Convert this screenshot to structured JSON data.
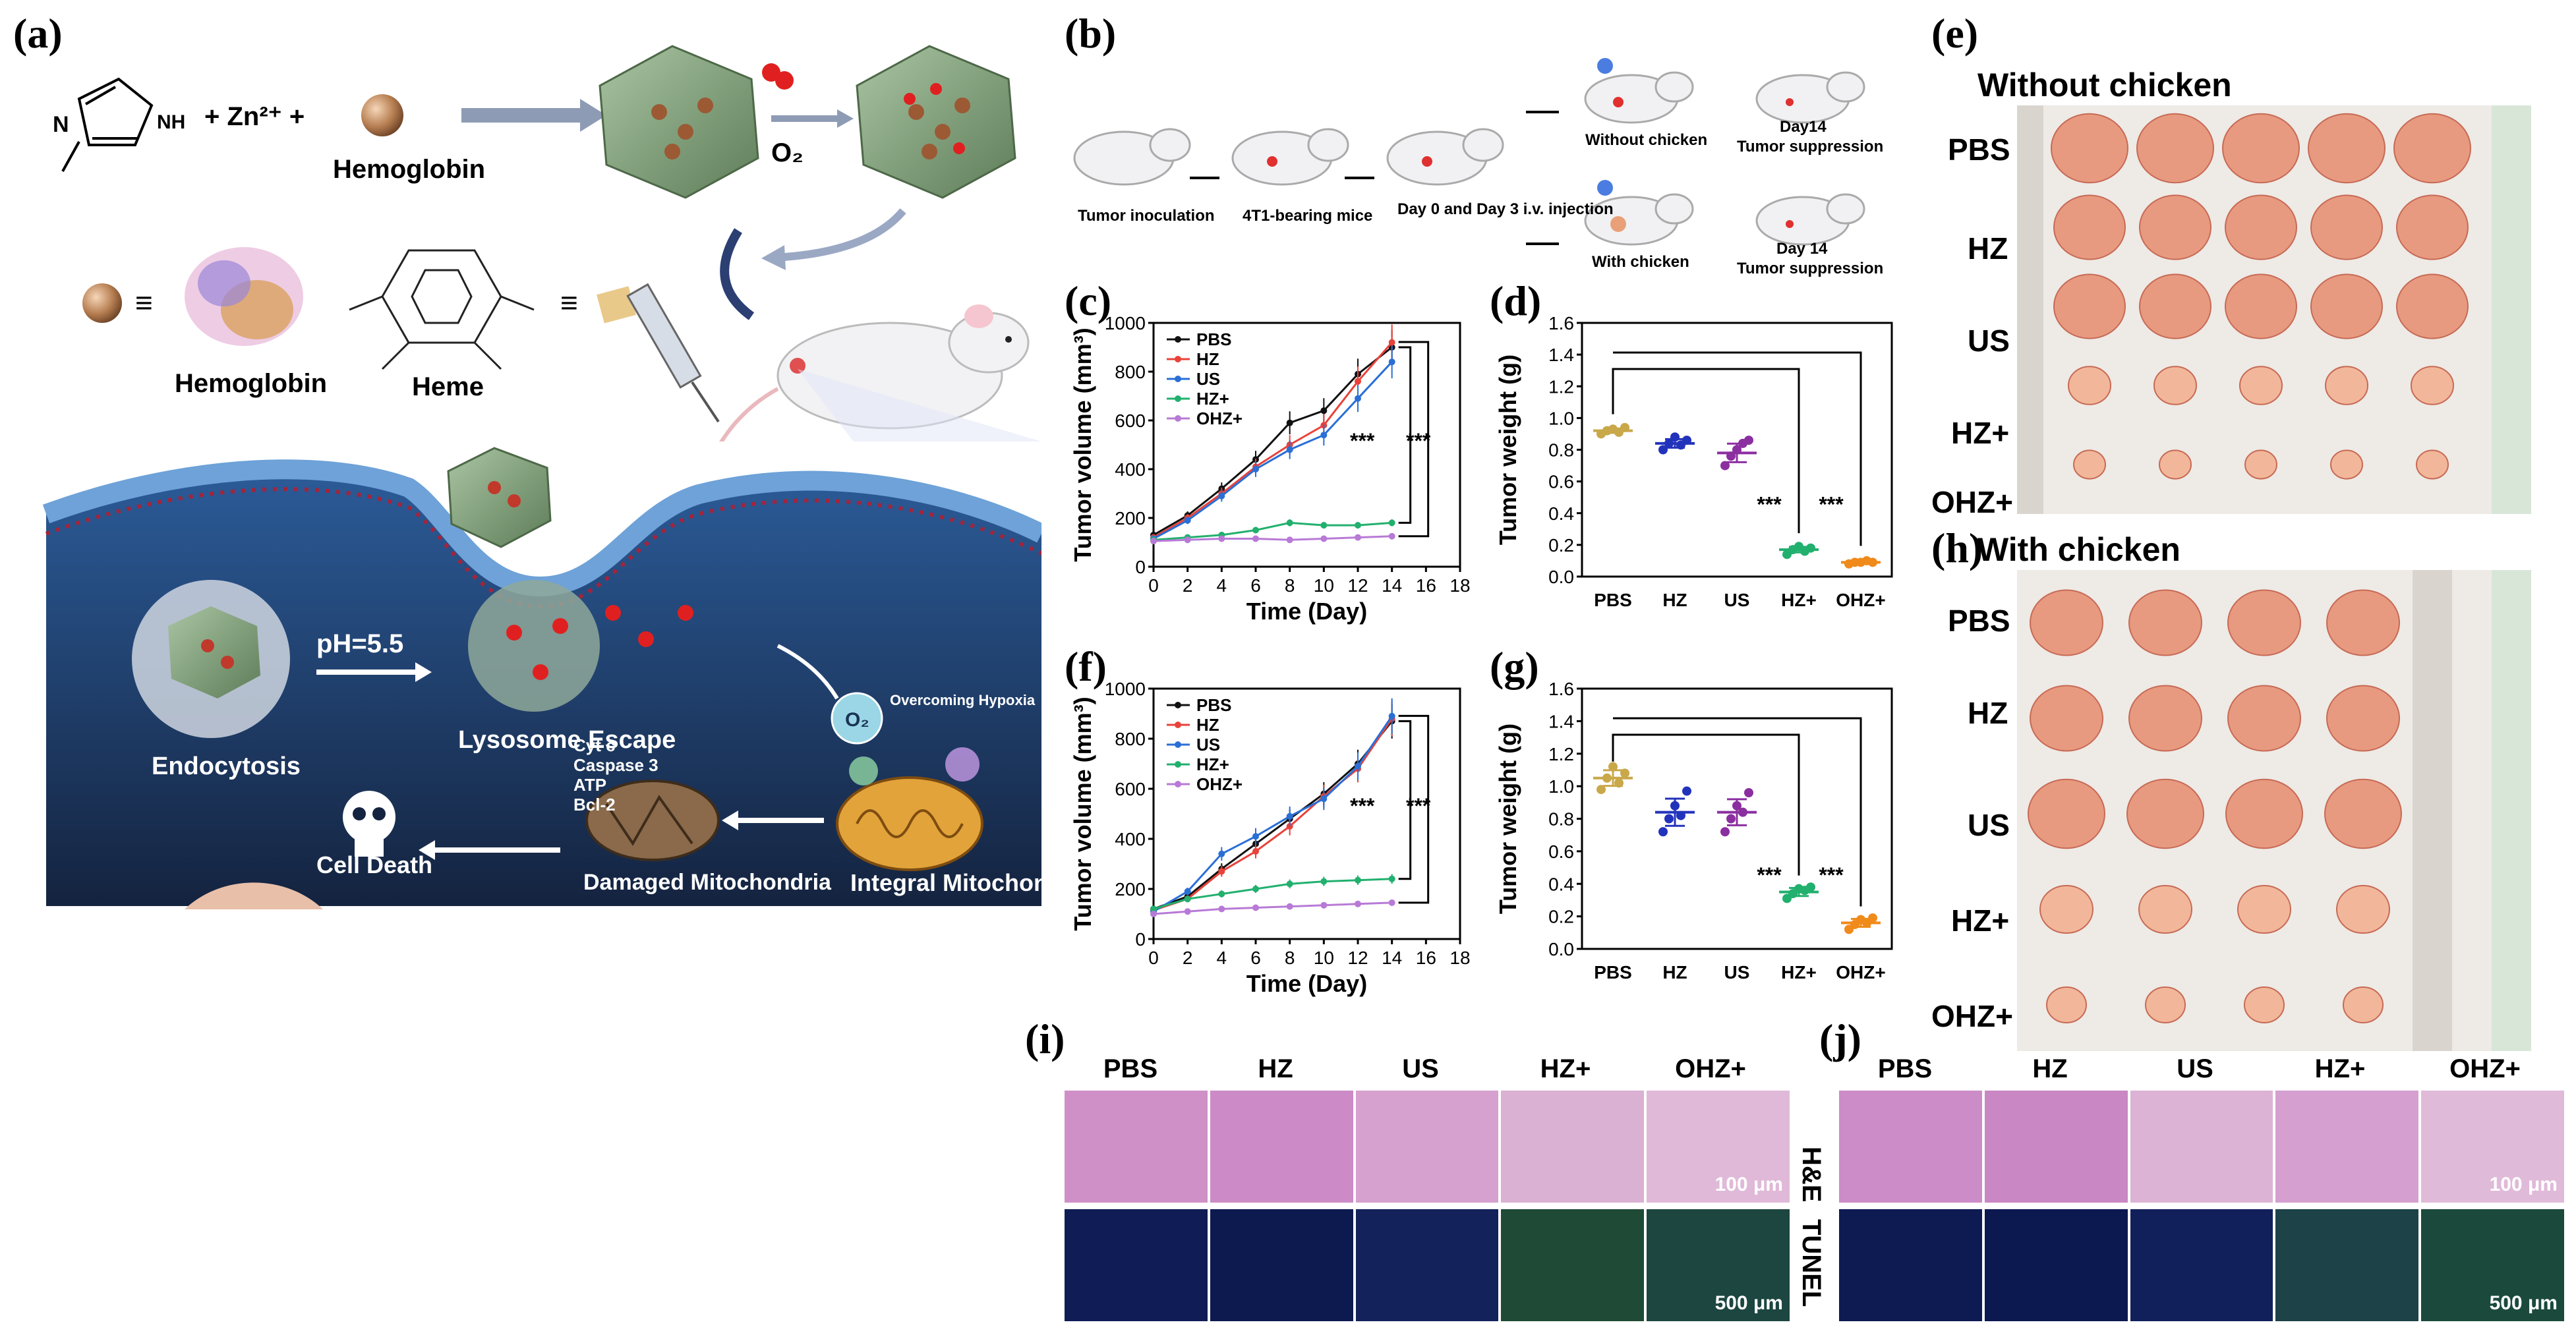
{
  "panels": {
    "a": "(a)",
    "b": "(b)",
    "c": "(c)",
    "d": "(d)",
    "e": "(e)",
    "f": "(f)",
    "g": "(g)",
    "h": "(h)",
    "i": "(i)",
    "j": "(j)"
  },
  "schematic": {
    "zn": "+ Zn²⁺ +",
    "hemoglobin": "Hemoglobin",
    "o2": "O₂",
    "hemoglobin2": "Hemoglobin",
    "heme": "Heme",
    "equiv": "≡",
    "ph": "pH=5.5",
    "endocytosis": "Endocytosis",
    "lysosome": "Lysosome Escape",
    "overcoming": "Overcoming Hypoxia",
    "o2_bubble": "O₂",
    "cytc": "Cyt c",
    "caspase": "Caspase 3",
    "atp": "ATP",
    "bcl": "Bcl-2",
    "cell_death": "Cell Death",
    "damaged": "Damaged Mitochondria",
    "integral": "Integral Mitochondria",
    "imidazole_nh": "NH",
    "imidazole_n": "N"
  },
  "timeline": {
    "tumor_inoculation": "Tumor inoculation",
    "bearing": "4T1-bearing mice",
    "injection": "Day 0 and Day 3 i.v. injection",
    "without": "Without chicken",
    "with": "With chicken",
    "day14a": "Day14",
    "supp_a": "Tumor suppression",
    "day14b": "Day 14",
    "supp_b": "Tumor suppression"
  },
  "photos": {
    "without_title": "Without chicken",
    "with_title": "With chicken",
    "rows": [
      "PBS",
      "HZ",
      "US",
      "HZ+",
      "OHZ+"
    ]
  },
  "histology": {
    "groups": [
      "PBS",
      "HZ",
      "US",
      "HZ+",
      "OHZ+"
    ],
    "he": "H&E",
    "tunel": "TUNEL",
    "scale_he": "100 μm",
    "scale_tunel": "500 μm"
  },
  "chart_data": [
    {
      "id": "c",
      "type": "line",
      "xlabel": "Time (Day)",
      "ylabel": "Tumor volume (mm³)",
      "xlim": [
        0,
        18
      ],
      "ylim": [
        0,
        1000
      ],
      "xticks": [
        0,
        2,
        4,
        6,
        8,
        10,
        12,
        14,
        16,
        18
      ],
      "yticks": [
        0,
        200,
        400,
        600,
        800,
        1000
      ],
      "x": [
        0,
        2,
        4,
        6,
        8,
        10,
        12,
        14
      ],
      "series": [
        {
          "name": "PBS",
          "color": "#111111",
          "values": [
            130,
            210,
            320,
            440,
            590,
            640,
            790,
            900
          ]
        },
        {
          "name": "HZ",
          "color": "#e8423a",
          "values": [
            120,
            200,
            300,
            410,
            500,
            580,
            760,
            920
          ]
        },
        {
          "name": "US",
          "color": "#2a6fd6",
          "values": [
            115,
            190,
            290,
            400,
            480,
            540,
            690,
            840
          ]
        },
        {
          "name": "HZ+",
          "color": "#22b06e",
          "values": [
            110,
            120,
            130,
            150,
            180,
            170,
            170,
            180
          ]
        },
        {
          "name": "OHZ+",
          "color": "#b87ad6",
          "values": [
            105,
            110,
            115,
            115,
            110,
            115,
            120,
            125
          ]
        }
      ],
      "annotations": [
        "***",
        "***"
      ]
    },
    {
      "id": "d",
      "type": "scatter",
      "xlabel": "",
      "ylabel": "Tumor weight (g)",
      "ylim": [
        0.0,
        1.6
      ],
      "yticks": [
        0.0,
        0.2,
        0.4,
        0.6,
        0.8,
        1.0,
        1.2,
        1.4,
        1.6
      ],
      "categories": [
        "PBS",
        "HZ",
        "US",
        "HZ+",
        "OHZ+"
      ],
      "colors": [
        "#c9a84a",
        "#2233bb",
        "#8b2fa0",
        "#22b06e",
        "#f08a1a"
      ],
      "means": [
        0.92,
        0.84,
        0.78,
        0.17,
        0.09
      ],
      "points": [
        [
          0.9,
          0.92,
          0.93,
          0.91,
          0.94
        ],
        [
          0.8,
          0.84,
          0.88,
          0.83,
          0.86
        ],
        [
          0.7,
          0.76,
          0.8,
          0.84,
          0.86
        ],
        [
          0.14,
          0.17,
          0.19,
          0.16,
          0.18
        ],
        [
          0.08,
          0.09,
          0.09,
          0.1,
          0.09
        ]
      ],
      "annotations": [
        "***",
        "***"
      ]
    },
    {
      "id": "f",
      "type": "line",
      "xlabel": "Time (Day)",
      "ylabel": "Tumor volume (mm³)",
      "xlim": [
        0,
        18
      ],
      "ylim": [
        0,
        1000
      ],
      "xticks": [
        0,
        2,
        4,
        6,
        8,
        10,
        12,
        14,
        16,
        18
      ],
      "yticks": [
        0,
        200,
        400,
        600,
        800,
        1000
      ],
      "x": [
        0,
        2,
        4,
        6,
        8,
        10,
        12,
        14
      ],
      "series": [
        {
          "name": "PBS",
          "color": "#111111",
          "values": [
            120,
            170,
            280,
            380,
            480,
            580,
            700,
            870
          ]
        },
        {
          "name": "HZ",
          "color": "#e8423a",
          "values": [
            115,
            160,
            270,
            350,
            450,
            570,
            680,
            880
          ]
        },
        {
          "name": "US",
          "color": "#2a6fd6",
          "values": [
            110,
            190,
            340,
            410,
            490,
            560,
            690,
            890
          ]
        },
        {
          "name": "HZ+",
          "color": "#22b06e",
          "values": [
            120,
            160,
            180,
            200,
            220,
            230,
            235,
            240
          ]
        },
        {
          "name": "OHZ+",
          "color": "#b87ad6",
          "values": [
            100,
            110,
            120,
            125,
            130,
            135,
            140,
            145
          ]
        }
      ],
      "annotations": [
        "***",
        "***"
      ]
    },
    {
      "id": "g",
      "type": "scatter",
      "xlabel": "",
      "ylabel": "Tumor weight (g)",
      "ylim": [
        0.0,
        1.6
      ],
      "yticks": [
        0.0,
        0.2,
        0.4,
        0.6,
        0.8,
        1.0,
        1.2,
        1.4,
        1.6
      ],
      "categories": [
        "PBS",
        "HZ",
        "US",
        "HZ+",
        "OHZ+"
      ],
      "colors": [
        "#c9a84a",
        "#2233bb",
        "#8b2fa0",
        "#22b06e",
        "#f08a1a"
      ],
      "means": [
        1.05,
        0.84,
        0.84,
        0.35,
        0.16
      ],
      "points": [
        [
          0.98,
          1.05,
          1.12,
          1.02,
          1.08
        ],
        [
          0.72,
          0.8,
          0.88,
          0.82,
          0.97
        ],
        [
          0.72,
          0.8,
          0.88,
          0.84,
          0.96
        ],
        [
          0.31,
          0.34,
          0.37,
          0.36,
          0.38
        ],
        [
          0.12,
          0.15,
          0.18,
          0.16,
          0.19
        ]
      ],
      "annotations": [
        "***",
        "***"
      ]
    }
  ]
}
